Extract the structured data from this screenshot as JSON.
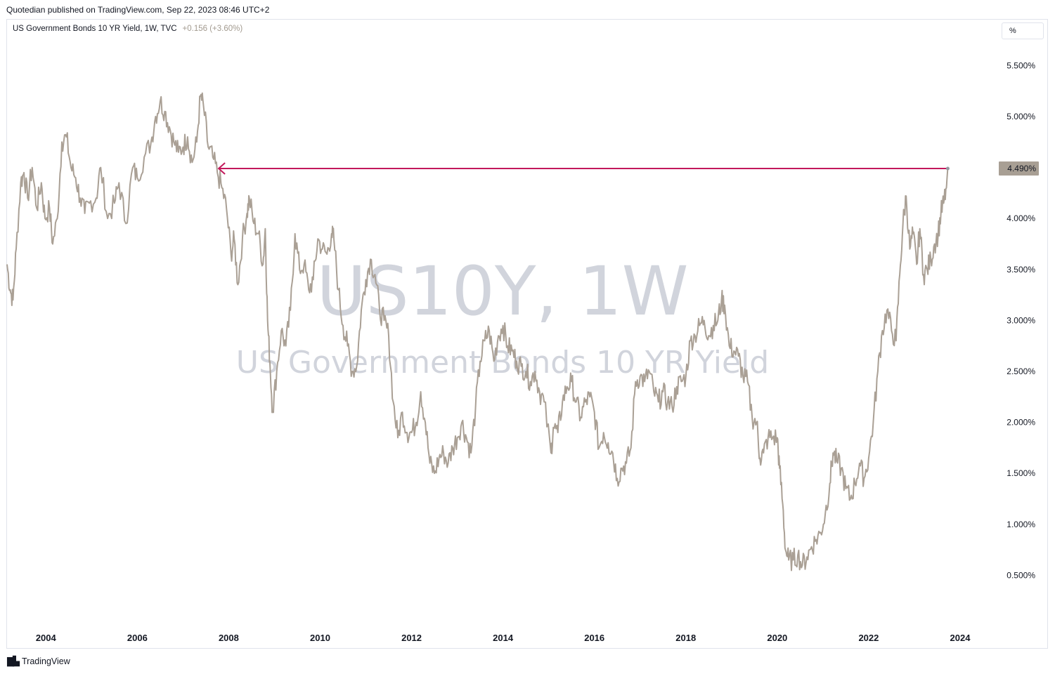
{
  "header": {
    "published": "Quotedian published on TradingView.com, Sep 22, 2023 08:46 UTC+2"
  },
  "legend": {
    "title": "US Government Bonds 10 YR Yield, 1W, TVC",
    "change": "+0.156 (+3.60%)"
  },
  "unit_button": "%",
  "watermark": {
    "symbol": "US10Y, 1W",
    "name": "US Government Bonds 10 YR Yield"
  },
  "footer": {
    "brand": "TradingView",
    "logo_icon": "tradingview-logo-icon"
  },
  "colors": {
    "series": "#aaa095",
    "arrow": "#c2185b",
    "price_tag": "#a89f94"
  },
  "chart_data": {
    "type": "line",
    "title": "US Government Bonds 10 YR Yield, 1W, TVC",
    "xlabel": "",
    "ylabel": "",
    "xlim": [
      2003.15,
      2024.8
    ],
    "ylim": [
      0.0,
      5.95
    ],
    "y_ticks": [
      {
        "value": 5.5,
        "label": "5.500%"
      },
      {
        "value": 5.0,
        "label": "5.000%"
      },
      {
        "value": 4.0,
        "label": "4.000%"
      },
      {
        "value": 3.5,
        "label": "3.500%"
      },
      {
        "value": 3.0,
        "label": "3.000%"
      },
      {
        "value": 2.5,
        "label": "2.500%"
      },
      {
        "value": 2.0,
        "label": "2.000%"
      },
      {
        "value": 1.5,
        "label": "1.500%"
      },
      {
        "value": 1.0,
        "label": "1.000%"
      },
      {
        "value": 0.5,
        "label": "0.500%"
      }
    ],
    "x_ticks": [
      {
        "value": 2004,
        "label": "2004"
      },
      {
        "value": 2006,
        "label": "2006"
      },
      {
        "value": 2008,
        "label": "2008"
      },
      {
        "value": 2010,
        "label": "2010"
      },
      {
        "value": 2012,
        "label": "2012"
      },
      {
        "value": 2014,
        "label": "2014"
      },
      {
        "value": 2016,
        "label": "2016"
      },
      {
        "value": 2018,
        "label": "2018"
      },
      {
        "value": 2020,
        "label": "2020"
      },
      {
        "value": 2022,
        "label": "2022"
      },
      {
        "value": 2024,
        "label": "2024"
      }
    ],
    "series": [
      {
        "values": [
          [
            2003.15,
            3.55
          ],
          [
            2003.22,
            3.3
          ],
          [
            2003.28,
            3.2
          ],
          [
            2003.35,
            3.7
          ],
          [
            2003.45,
            4.35
          ],
          [
            2003.52,
            4.45
          ],
          [
            2003.6,
            4.2
          ],
          [
            2003.7,
            4.5
          ],
          [
            2003.8,
            4.1
          ],
          [
            2003.9,
            4.35
          ],
          [
            2003.98,
            4.0
          ],
          [
            2004.08,
            4.1
          ],
          [
            2004.15,
            3.75
          ],
          [
            2004.25,
            4.0
          ],
          [
            2004.35,
            4.75
          ],
          [
            2004.45,
            4.8
          ],
          [
            2004.55,
            4.5
          ],
          [
            2004.65,
            4.4
          ],
          [
            2004.75,
            4.2
          ],
          [
            2004.85,
            4.05
          ],
          [
            2004.95,
            4.15
          ],
          [
            2005.1,
            4.2
          ],
          [
            2005.2,
            4.5
          ],
          [
            2005.35,
            4.0
          ],
          [
            2005.5,
            4.15
          ],
          [
            2005.6,
            4.35
          ],
          [
            2005.75,
            3.95
          ],
          [
            2005.9,
            4.5
          ],
          [
            2006.0,
            4.4
          ],
          [
            2006.15,
            4.6
          ],
          [
            2006.3,
            4.75
          ],
          [
            2006.4,
            5.0
          ],
          [
            2006.5,
            5.15
          ],
          [
            2006.6,
            5.05
          ],
          [
            2006.7,
            4.9
          ],
          [
            2006.8,
            4.75
          ],
          [
            2006.9,
            4.65
          ],
          [
            2007.0,
            4.7
          ],
          [
            2007.1,
            4.8
          ],
          [
            2007.2,
            4.55
          ],
          [
            2007.3,
            4.75
          ],
          [
            2007.38,
            5.2
          ],
          [
            2007.45,
            5.1
          ],
          [
            2007.55,
            4.7
          ],
          [
            2007.65,
            4.6
          ],
          [
            2007.75,
            4.45
          ],
          [
            2007.85,
            4.3
          ],
          [
            2007.95,
            4.1
          ],
          [
            2008.05,
            3.65
          ],
          [
            2008.12,
            3.8
          ],
          [
            2008.2,
            3.35
          ],
          [
            2008.3,
            3.8
          ],
          [
            2008.4,
            4.05
          ],
          [
            2008.45,
            4.2
          ],
          [
            2008.55,
            3.95
          ],
          [
            2008.65,
            3.85
          ],
          [
            2008.75,
            3.55
          ],
          [
            2008.8,
            3.9
          ],
          [
            2008.85,
            3.0
          ],
          [
            2008.9,
            2.6
          ],
          [
            2008.96,
            2.1
          ],
          [
            2009.05,
            2.5
          ],
          [
            2009.15,
            2.9
          ],
          [
            2009.25,
            2.75
          ],
          [
            2009.35,
            3.1
          ],
          [
            2009.45,
            3.85
          ],
          [
            2009.55,
            3.5
          ],
          [
            2009.65,
            3.55
          ],
          [
            2009.75,
            3.3
          ],
          [
            2009.85,
            3.4
          ],
          [
            2009.95,
            3.8
          ],
          [
            2010.05,
            3.7
          ],
          [
            2010.15,
            3.65
          ],
          [
            2010.25,
            3.85
          ],
          [
            2010.3,
            3.8
          ],
          [
            2010.4,
            3.3
          ],
          [
            2010.5,
            2.95
          ],
          [
            2010.6,
            2.75
          ],
          [
            2010.7,
            2.5
          ],
          [
            2010.8,
            2.55
          ],
          [
            2010.9,
            3.1
          ],
          [
            2011.0,
            3.4
          ],
          [
            2011.1,
            3.6
          ],
          [
            2011.2,
            3.45
          ],
          [
            2011.3,
            3.1
          ],
          [
            2011.4,
            3.0
          ],
          [
            2011.5,
            2.85
          ],
          [
            2011.6,
            2.2
          ],
          [
            2011.7,
            1.85
          ],
          [
            2011.8,
            2.1
          ],
          [
            2011.9,
            1.9
          ],
          [
            2012.0,
            1.9
          ],
          [
            2012.1,
            2.0
          ],
          [
            2012.2,
            2.3
          ],
          [
            2012.3,
            2.0
          ],
          [
            2012.4,
            1.6
          ],
          [
            2012.5,
            1.5
          ],
          [
            2012.6,
            1.65
          ],
          [
            2012.7,
            1.7
          ],
          [
            2012.8,
            1.6
          ],
          [
            2012.9,
            1.75
          ],
          [
            2013.0,
            1.85
          ],
          [
            2013.1,
            2.0
          ],
          [
            2013.2,
            1.85
          ],
          [
            2013.3,
            1.7
          ],
          [
            2013.4,
            2.15
          ],
          [
            2013.5,
            2.6
          ],
          [
            2013.6,
            2.8
          ],
          [
            2013.7,
            2.9
          ],
          [
            2013.8,
            2.6
          ],
          [
            2013.9,
            2.85
          ],
          [
            2014.0,
            2.95
          ],
          [
            2014.1,
            2.75
          ],
          [
            2014.2,
            2.7
          ],
          [
            2014.3,
            2.6
          ],
          [
            2014.4,
            2.55
          ],
          [
            2014.5,
            2.5
          ],
          [
            2014.6,
            2.4
          ],
          [
            2014.7,
            2.5
          ],
          [
            2014.8,
            2.3
          ],
          [
            2014.9,
            2.2
          ],
          [
            2015.05,
            1.7
          ],
          [
            2015.1,
            1.95
          ],
          [
            2015.2,
            1.9
          ],
          [
            2015.3,
            2.2
          ],
          [
            2015.4,
            2.35
          ],
          [
            2015.5,
            2.4
          ],
          [
            2015.6,
            2.2
          ],
          [
            2015.7,
            2.05
          ],
          [
            2015.8,
            2.2
          ],
          [
            2015.9,
            2.25
          ],
          [
            2016.0,
            2.1
          ],
          [
            2016.1,
            1.75
          ],
          [
            2016.2,
            1.9
          ],
          [
            2016.3,
            1.8
          ],
          [
            2016.4,
            1.7
          ],
          [
            2016.5,
            1.45
          ],
          [
            2016.6,
            1.55
          ],
          [
            2016.7,
            1.6
          ],
          [
            2016.8,
            1.75
          ],
          [
            2016.9,
            2.4
          ],
          [
            2017.0,
            2.45
          ],
          [
            2017.1,
            2.4
          ],
          [
            2017.2,
            2.5
          ],
          [
            2017.3,
            2.3
          ],
          [
            2017.4,
            2.2
          ],
          [
            2017.5,
            2.3
          ],
          [
            2017.6,
            2.2
          ],
          [
            2017.7,
            2.15
          ],
          [
            2017.8,
            2.35
          ],
          [
            2017.9,
            2.4
          ],
          [
            2018.0,
            2.45
          ],
          [
            2018.1,
            2.8
          ],
          [
            2018.2,
            2.85
          ],
          [
            2018.3,
            2.95
          ],
          [
            2018.4,
            3.0
          ],
          [
            2018.5,
            2.85
          ],
          [
            2018.6,
            2.95
          ],
          [
            2018.7,
            3.0
          ],
          [
            2018.78,
            3.2
          ],
          [
            2018.85,
            3.15
          ],
          [
            2018.95,
            2.75
          ],
          [
            2019.05,
            2.7
          ],
          [
            2019.15,
            2.65
          ],
          [
            2019.25,
            2.45
          ],
          [
            2019.35,
            2.4
          ],
          [
            2019.45,
            2.05
          ],
          [
            2019.55,
            2.0
          ],
          [
            2019.62,
            1.65
          ],
          [
            2019.7,
            1.7
          ],
          [
            2019.8,
            1.85
          ],
          [
            2019.9,
            1.85
          ],
          [
            2020.0,
            1.85
          ],
          [
            2020.05,
            1.55
          ],
          [
            2020.12,
            1.2
          ],
          [
            2020.18,
            0.75
          ],
          [
            2020.25,
            0.65
          ],
          [
            2020.35,
            0.65
          ],
          [
            2020.45,
            0.7
          ],
          [
            2020.55,
            0.6
          ],
          [
            2020.65,
            0.68
          ],
          [
            2020.75,
            0.78
          ],
          [
            2020.85,
            0.85
          ],
          [
            2020.95,
            0.92
          ],
          [
            2021.05,
            1.1
          ],
          [
            2021.15,
            1.4
          ],
          [
            2021.22,
            1.7
          ],
          [
            2021.3,
            1.62
          ],
          [
            2021.4,
            1.55
          ],
          [
            2021.5,
            1.35
          ],
          [
            2021.6,
            1.25
          ],
          [
            2021.7,
            1.4
          ],
          [
            2021.8,
            1.6
          ],
          [
            2021.9,
            1.45
          ],
          [
            2022.0,
            1.65
          ],
          [
            2022.1,
            2.0
          ],
          [
            2022.2,
            2.5
          ],
          [
            2022.3,
            2.9
          ],
          [
            2022.4,
            3.1
          ],
          [
            2022.5,
            2.9
          ],
          [
            2022.6,
            2.8
          ],
          [
            2022.68,
            3.45
          ],
          [
            2022.75,
            3.95
          ],
          [
            2022.82,
            4.22
          ],
          [
            2022.9,
            3.7
          ],
          [
            2022.97,
            3.85
          ],
          [
            2023.05,
            3.55
          ],
          [
            2023.12,
            3.9
          ],
          [
            2023.2,
            3.45
          ],
          [
            2023.28,
            3.5
          ],
          [
            2023.36,
            3.6
          ],
          [
            2023.44,
            3.75
          ],
          [
            2023.52,
            3.85
          ],
          [
            2023.58,
            4.05
          ],
          [
            2023.64,
            4.15
          ],
          [
            2023.7,
            4.3
          ],
          [
            2023.73,
            4.49
          ]
        ]
      }
    ],
    "last_value": 4.49,
    "last_value_label": "4.490%",
    "annotations": [
      {
        "type": "arrow",
        "from": [
          2023.73,
          4.49
        ],
        "to": [
          2007.78,
          4.49
        ]
      }
    ],
    "grid": false,
    "legend_position": "top-left"
  }
}
